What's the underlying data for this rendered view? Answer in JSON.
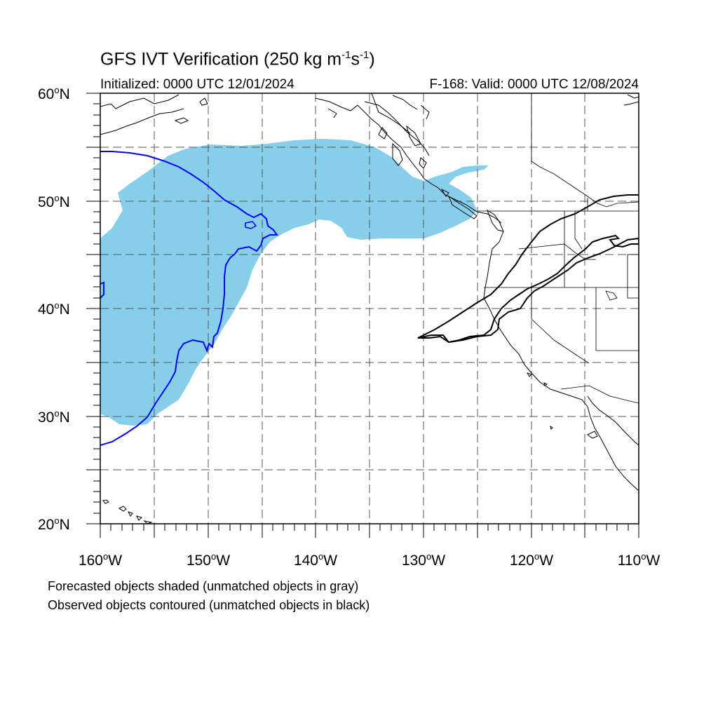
{
  "title": {
    "prefix": "GFS IVT Verification (250 kg m",
    "exp1": "-1",
    "mid": "s",
    "exp2": "-1",
    "suffix": ")"
  },
  "initialized": "Initialized: 0000 UTC 12/01/2024",
  "valid": "F-168: Valid: 0000 UTC 12/08/2024",
  "lat_labels": [
    {
      "deg": "60",
      "hem": "N"
    },
    {
      "deg": "50",
      "hem": "N"
    },
    {
      "deg": "40",
      "hem": "N"
    },
    {
      "deg": "30",
      "hem": "N"
    },
    {
      "deg": "20",
      "hem": "N"
    }
  ],
  "lon_labels": [
    {
      "deg": "160",
      "hem": "W"
    },
    {
      "deg": "150",
      "hem": "W"
    },
    {
      "deg": "140",
      "hem": "W"
    },
    {
      "deg": "130",
      "hem": "W"
    },
    {
      "deg": "120",
      "hem": "W"
    },
    {
      "deg": "110",
      "hem": "W"
    }
  ],
  "captions": [
    "Forecasted objects shaded (unmatched objects in gray)",
    "Observed objects contoured (unmatched objects in black)"
  ],
  "colors": {
    "forecast_fill": "#87ceeb",
    "observed_contour": "#0000ff",
    "coastline": "#000000",
    "grid": "#555555"
  }
}
